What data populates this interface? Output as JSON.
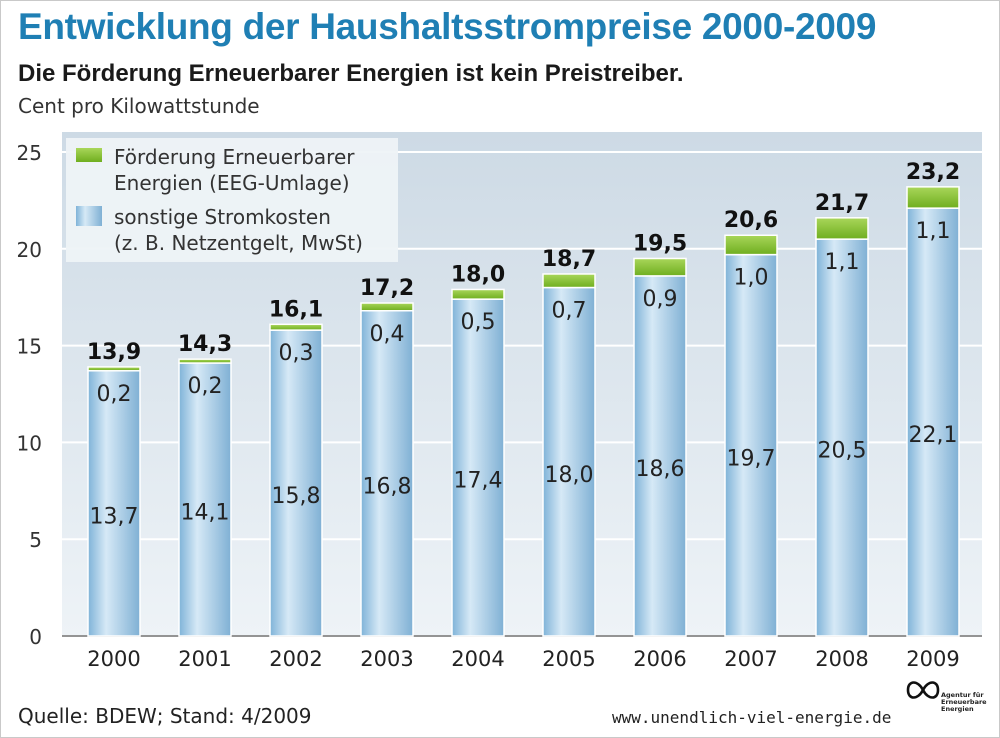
{
  "title": "Entwicklung der Haushaltsstrompreise 2000-2009",
  "subtitle": "Die Förderung Erneuerbarer Energien ist kein Preistreiber.",
  "unit_label": "Cent pro Kilowattstunde",
  "source": "Quelle: BDEW; Stand: 4/2009",
  "url": "www.unendlich-viel-energie.de",
  "logo": {
    "icon": "infinity-icon",
    "text": "Agentur für Erneuerbare Energien"
  },
  "colors": {
    "title": "#1f7fb4",
    "eeg": "#8cc63f",
    "other": "#9fcbe6",
    "plot_bg": "#dde7ef"
  },
  "chart_data": {
    "type": "bar",
    "stacked": true,
    "categories": [
      "2000",
      "2001",
      "2002",
      "2003",
      "2004",
      "2005",
      "2006",
      "2007",
      "2008",
      "2009"
    ],
    "series": [
      {
        "name": "sonstige Stromkosten (z. B. Netzentgelt, MwSt)",
        "values": [
          13.7,
          14.1,
          15.8,
          16.8,
          17.4,
          18.0,
          18.6,
          19.7,
          20.5,
          22.1
        ],
        "labels": [
          "13,7",
          "14,1",
          "15,8",
          "16,8",
          "17,4",
          "18,0",
          "18,6",
          "19,7",
          "20,5",
          "22,1"
        ]
      },
      {
        "name": "Förderung Erneuerbarer Energien (EEG-Umlage)",
        "values": [
          0.2,
          0.2,
          0.3,
          0.4,
          0.5,
          0.7,
          0.9,
          1.0,
          1.1,
          1.1
        ],
        "labels": [
          "0,2",
          "0,2",
          "0,3",
          "0,4",
          "0,5",
          "0,7",
          "0,9",
          "1,0",
          "1,1",
          "1,1"
        ]
      }
    ],
    "totals": [
      13.9,
      14.3,
      16.1,
      17.2,
      18.0,
      18.7,
      19.5,
      20.6,
      21.7,
      23.2
    ],
    "total_labels": [
      "13,9",
      "14,3",
      "16,1",
      "17,2",
      "18,0",
      "18,7",
      "19,5",
      "20,6",
      "21,7",
      "23,2"
    ],
    "y_ticks": [
      "0",
      "5",
      "10",
      "15",
      "20",
      "25"
    ],
    "ylim": [
      0,
      25
    ],
    "legend": [
      {
        "line1": "Förderung Erneuerbarer",
        "line2": "Energien (EEG-Umlage)"
      },
      {
        "line1": "sonstige Stromkosten",
        "line2": "(z. B. Netzentgelt, MwSt)"
      }
    ],
    "legend_position": "top-left",
    "grid": true
  }
}
